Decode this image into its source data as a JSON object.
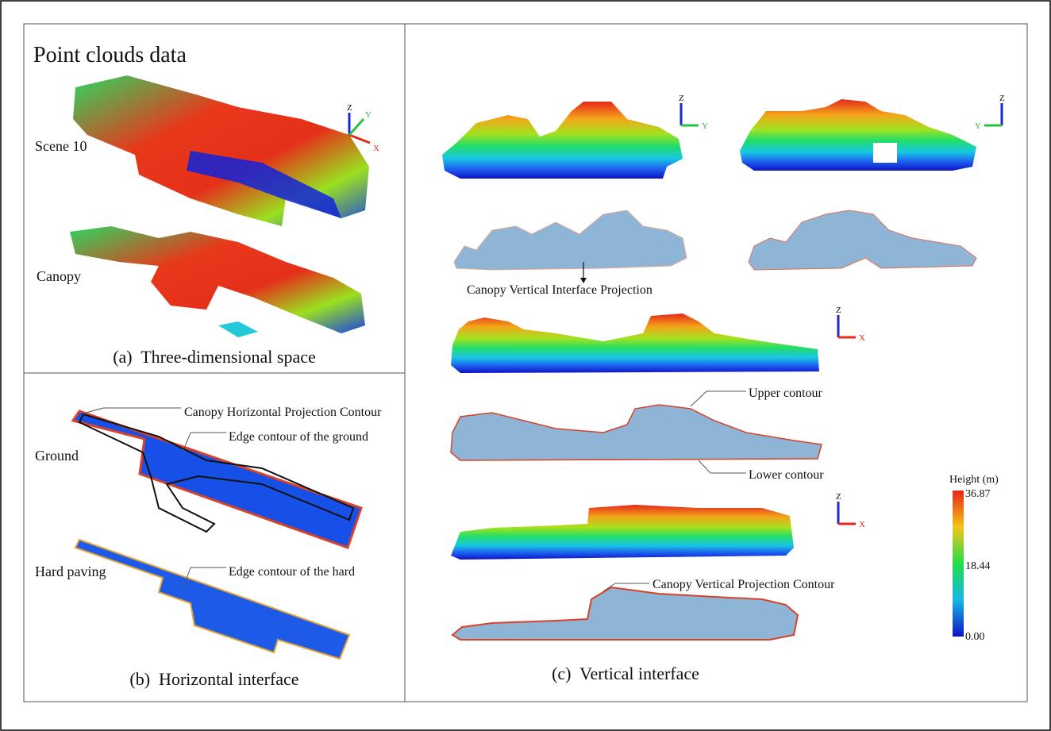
{
  "header": {
    "title": "Point clouds data"
  },
  "axis_labels": {
    "x": "X",
    "y": "Y",
    "z": "Z"
  },
  "panel_a": {
    "scene_label": "Scene 10",
    "canopy_label": "Canopy",
    "caption": "(a)  Three-dimensional space"
  },
  "panel_b": {
    "canopy_contour_label": "Canopy Horizontal Projection Contour",
    "ground_edge_label": "Edge contour of the ground",
    "ground_label": "Ground",
    "hard_label": "Hard paving",
    "hard_edge_label": "Edge contour of the hard",
    "caption": "(b)  Horizontal interface"
  },
  "panel_c": {
    "interface_projection_label": "Canopy Vertical Interface Projection",
    "upper_contour_label": "Upper contour",
    "lower_contour_label": "Lower contour",
    "projection_contour_label": "Canopy Vertical Projection Contour",
    "caption": "(c)  Vertical interface"
  },
  "legend": {
    "title": "Height (m)",
    "max": "36.87",
    "mid": "18.44",
    "min": "0.00"
  }
}
